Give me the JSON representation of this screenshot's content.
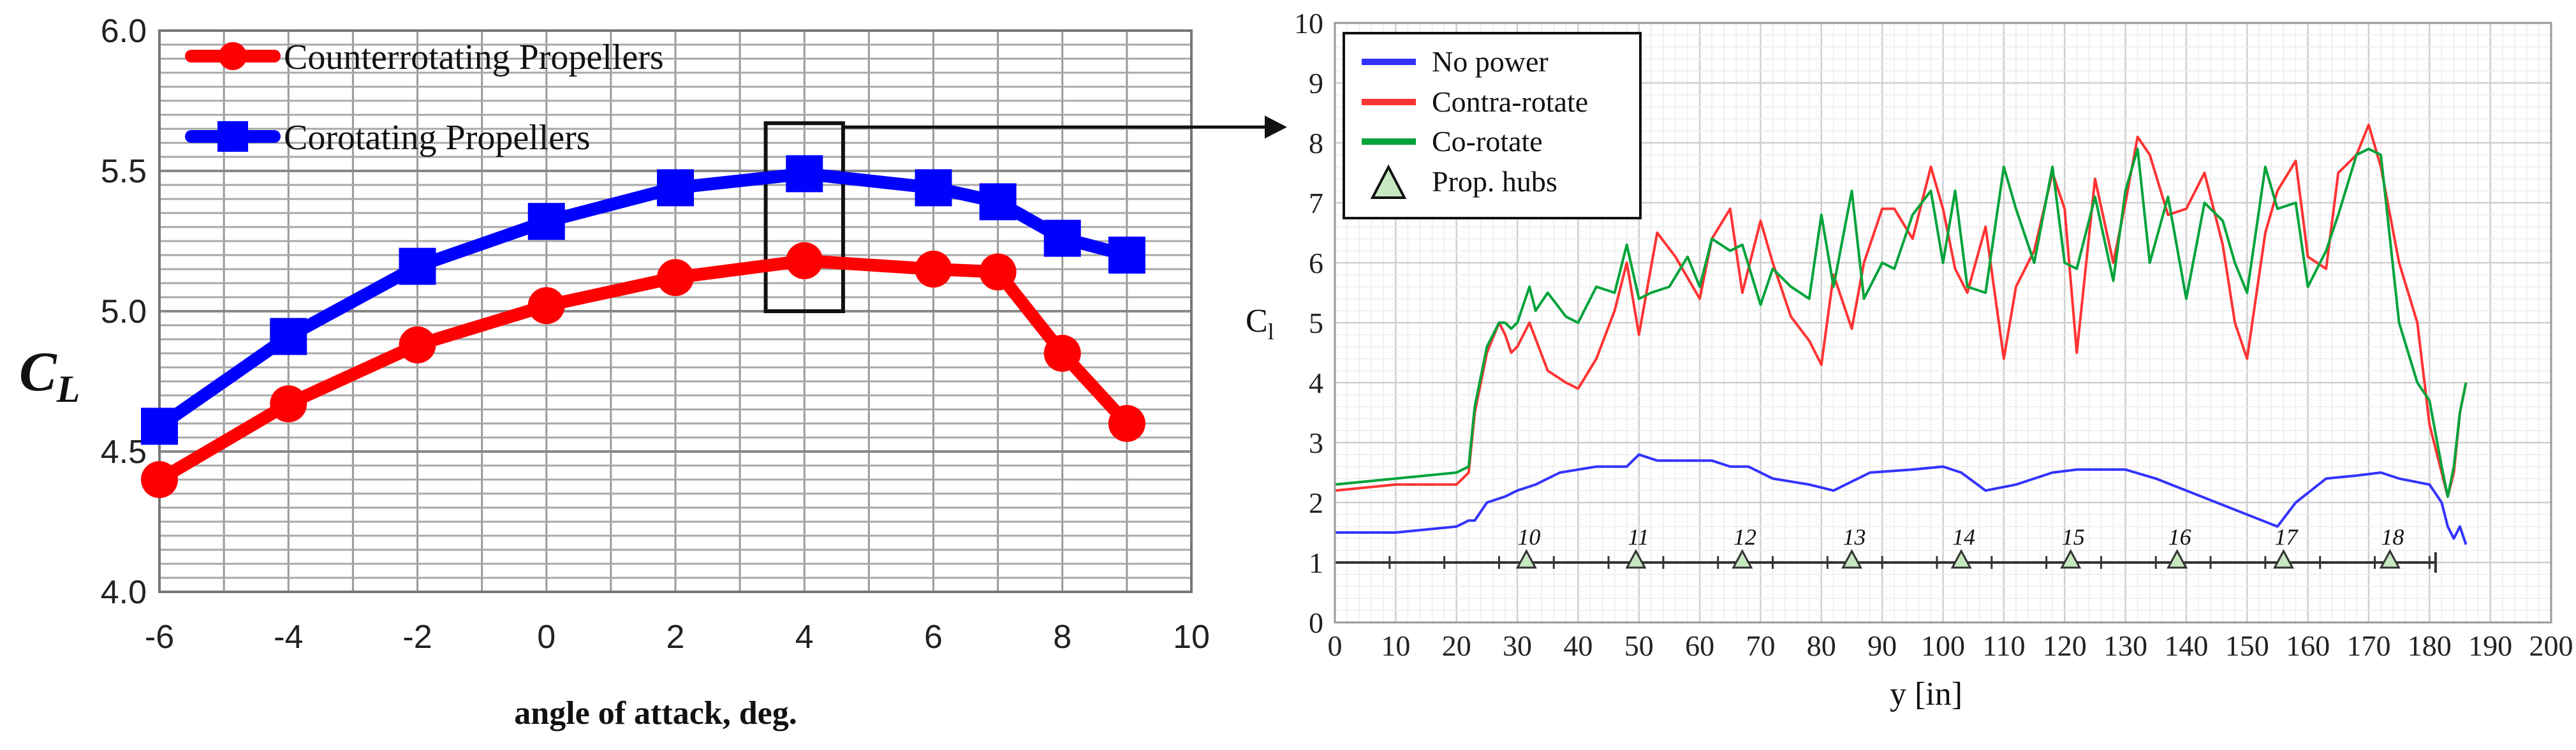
{
  "chart_data": [
    {
      "type": "line",
      "title": "",
      "xlabel": "angle of attack, deg.",
      "ylabel": "C",
      "ylabel_sub": "L",
      "xlim": [
        -6,
        10
      ],
      "ylim": [
        4.0,
        6.0
      ],
      "xticks": [
        "-6",
        "-4",
        "-2",
        "0",
        "2",
        "4",
        "6",
        "8",
        "10"
      ],
      "yticks": [
        "4.0",
        "4.5",
        "5.0",
        "5.5",
        "6.0"
      ],
      "grid": true,
      "legend_position": "top-left",
      "highlight_box_x": 4,
      "series": [
        {
          "name": "Counterrotating Propellers",
          "color": "#ff0000",
          "marker": "circle",
          "x": [
            -6,
            -4,
            -2,
            0,
            2,
            4,
            6,
            7,
            8,
            9
          ],
          "y": [
            4.4,
            4.67,
            4.88,
            5.02,
            5.12,
            5.18,
            5.15,
            5.14,
            4.85,
            4.6
          ]
        },
        {
          "name": "Corotating Propellers",
          "color": "#0000ff",
          "marker": "square",
          "x": [
            -6,
            -4,
            -2,
            0,
            2,
            4,
            6,
            7,
            8,
            9
          ],
          "y": [
            4.59,
            4.91,
            5.16,
            5.32,
            5.44,
            5.49,
            5.44,
            5.39,
            5.26,
            5.2
          ]
        }
      ]
    },
    {
      "type": "line",
      "title": "",
      "xlabel": "y [in]",
      "ylabel": "C",
      "ylabel_sub": "l",
      "xlim": [
        0,
        200
      ],
      "ylim": [
        0,
        10
      ],
      "xticks": [
        "0",
        "10",
        "20",
        "30",
        "40",
        "50",
        "60",
        "70",
        "80",
        "90",
        "100",
        "110",
        "120",
        "130",
        "140",
        "150",
        "160",
        "170",
        "180",
        "190",
        "200"
      ],
      "yticks": [
        "0",
        "1",
        "2",
        "3",
        "4",
        "5",
        "6",
        "7",
        "8",
        "9",
        "10"
      ],
      "grid": true,
      "legend_position": "top-left",
      "series": [
        {
          "name": "No power",
          "color": "#3333ff",
          "x": [
            0,
            10,
            20,
            22,
            23,
            25,
            28,
            30,
            33,
            37,
            40,
            43,
            48,
            50,
            53,
            57,
            62,
            65,
            68,
            72,
            78,
            82,
            86,
            88,
            95,
            100,
            103,
            107,
            112,
            118,
            122,
            125,
            130,
            135,
            140,
            145,
            150,
            155,
            158,
            163,
            168,
            172,
            175,
            180,
            182,
            183,
            184,
            185,
            186
          ],
          "y": [
            1.5,
            1.5,
            1.6,
            1.7,
            1.7,
            2.0,
            2.1,
            2.2,
            2.3,
            2.5,
            2.55,
            2.6,
            2.6,
            2.8,
            2.7,
            2.7,
            2.7,
            2.6,
            2.6,
            2.4,
            2.3,
            2.2,
            2.4,
            2.5,
            2.55,
            2.6,
            2.5,
            2.2,
            2.3,
            2.5,
            2.55,
            2.55,
            2.55,
            2.4,
            2.2,
            2.0,
            1.8,
            1.6,
            2.0,
            2.4,
            2.45,
            2.5,
            2.4,
            2.3,
            2.0,
            1.6,
            1.4,
            1.6,
            1.3
          ]
        },
        {
          "name": "Contra-rotate",
          "color": "#ff3333",
          "x": [
            0,
            10,
            20,
            22,
            23,
            25,
            27,
            28,
            29,
            30,
            32,
            35,
            38,
            40,
            43,
            46,
            48,
            50,
            53,
            56,
            60,
            62,
            65,
            67,
            70,
            72,
            75,
            78,
            80,
            82,
            85,
            87,
            90,
            92,
            95,
            98,
            100,
            102,
            104,
            107,
            110,
            112,
            115,
            118,
            120,
            122,
            125,
            128,
            130,
            132,
            134,
            137,
            140,
            143,
            146,
            148,
            150,
            153,
            155,
            158,
            160,
            163,
            165,
            168,
            170,
            172,
            175,
            178,
            180,
            182,
            183,
            184,
            185,
            186
          ],
          "y": [
            2.2,
            2.3,
            2.3,
            2.5,
            3.5,
            4.5,
            5.0,
            4.8,
            4.5,
            4.6,
            5.0,
            4.2,
            4.0,
            3.9,
            4.4,
            5.2,
            6.0,
            4.8,
            6.5,
            6.1,
            5.4,
            6.4,
            6.9,
            5.5,
            6.7,
            6.0,
            5.1,
            4.7,
            4.3,
            5.8,
            4.9,
            6.0,
            6.9,
            6.9,
            6.4,
            7.6,
            6.9,
            5.9,
            5.5,
            6.6,
            4.4,
            5.6,
            6.2,
            7.5,
            6.9,
            4.5,
            7.4,
            6.0,
            7.0,
            8.1,
            7.8,
            6.8,
            6.9,
            7.5,
            6.3,
            5.0,
            4.4,
            6.5,
            7.2,
            7.7,
            6.1,
            5.9,
            7.5,
            7.8,
            8.3,
            7.6,
            6.0,
            5.0,
            3.3,
            2.5,
            2.1,
            2.5,
            3.5,
            4.0
          ]
        },
        {
          "name": "Co-rotate",
          "color": "#00a33a",
          "x": [
            0,
            10,
            20,
            22,
            23,
            25,
            27,
            28,
            29,
            30,
            32,
            33,
            35,
            38,
            40,
            43,
            46,
            48,
            50,
            52,
            55,
            58,
            60,
            62,
            65,
            67,
            70,
            72,
            75,
            78,
            80,
            82,
            85,
            87,
            90,
            92,
            95,
            98,
            100,
            102,
            104,
            107,
            110,
            112,
            115,
            118,
            120,
            122,
            125,
            128,
            130,
            132,
            134,
            137,
            140,
            143,
            146,
            148,
            150,
            153,
            155,
            158,
            160,
            163,
            165,
            168,
            170,
            172,
            175,
            178,
            180,
            182,
            183,
            184,
            185,
            186
          ],
          "y": [
            2.3,
            2.4,
            2.5,
            2.6,
            3.6,
            4.6,
            5.0,
            5.0,
            4.9,
            5.0,
            5.6,
            5.2,
            5.5,
            5.1,
            5.0,
            5.6,
            5.5,
            6.3,
            5.4,
            5.5,
            5.6,
            6.1,
            5.6,
            6.4,
            6.2,
            6.3,
            5.3,
            5.9,
            5.6,
            5.4,
            6.8,
            5.6,
            7.2,
            5.4,
            6.0,
            5.9,
            6.8,
            7.2,
            6.0,
            7.2,
            5.6,
            5.5,
            7.6,
            6.9,
            6.0,
            7.6,
            6.0,
            5.9,
            7.1,
            5.7,
            7.2,
            7.9,
            6.0,
            7.1,
            5.4,
            7.0,
            6.7,
            6.0,
            5.5,
            7.6,
            6.9,
            7.0,
            5.6,
            6.2,
            6.8,
            7.8,
            7.9,
            7.8,
            5.0,
            4.0,
            3.7,
            2.6,
            2.1,
            2.6,
            3.5,
            4.0
          ]
        },
        {
          "name": "Prop. hubs",
          "color": "#c7e8c0",
          "marker": "triangle",
          "x": [
            31.5,
            49.5,
            67,
            85,
            103,
            121,
            138.5,
            156,
            173.5
          ],
          "y": [
            1,
            1,
            1,
            1,
            1,
            1,
            1,
            1,
            1
          ],
          "labels": [
            "10",
            "11",
            "12",
            "13",
            "14",
            "15",
            "16",
            "17",
            "18"
          ]
        }
      ]
    }
  ]
}
